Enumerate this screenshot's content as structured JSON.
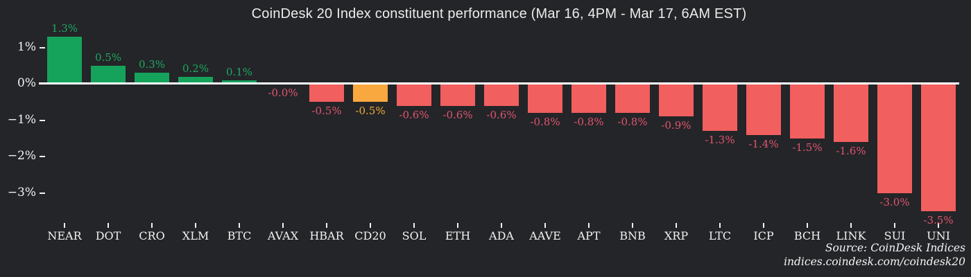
{
  "title": "CoinDesk 20 Index constituent performance (Mar 16, 4PM - Mar 17, 6AM EST)",
  "source": {
    "line1": "Source: CoinDesk Indices",
    "line2": "indices.coindesk.com/coindesk20"
  },
  "colors": {
    "background": "#242528",
    "positive_bar": "#15a35c",
    "negative_bar": "#f25f5f",
    "highlight_bar": "#f9a840",
    "positive_label": "#1ea863",
    "negative_label": "#e05570",
    "highlight_label": "#f0ad3a",
    "axis_line": "#ffffff",
    "axis_text": "#f2f2f2",
    "title_text": "#ececec"
  },
  "chart_data": {
    "type": "bar",
    "title": "CoinDesk 20 Index constituent performance (Mar 16, 4PM - Mar 17, 6AM EST)",
    "categories": [
      "NEAR",
      "DOT",
      "CRO",
      "XLM",
      "BTC",
      "AVAX",
      "HBAR",
      "CD20",
      "SOL",
      "ETH",
      "ADA",
      "AAVE",
      "APT",
      "BNB",
      "XRP",
      "LTC",
      "ICP",
      "BCH",
      "LINK",
      "SUI",
      "UNI"
    ],
    "values": [
      1.3,
      0.5,
      0.3,
      0.2,
      0.1,
      -0.0,
      -0.5,
      -0.5,
      -0.6,
      -0.6,
      -0.6,
      -0.8,
      -0.8,
      -0.8,
      -0.9,
      -1.3,
      -1.4,
      -1.5,
      -1.6,
      -3.0,
      -3.5
    ],
    "bar_labels": [
      "1.3%",
      "0.5%",
      "0.3%",
      "0.2%",
      "0.1%",
      "-0.0%",
      "-0.5%",
      "-0.5%",
      "-0.6%",
      "-0.6%",
      "-0.6%",
      "-0.8%",
      "-0.8%",
      "-0.8%",
      "-0.9%",
      "-1.3%",
      "-1.4%",
      "-1.5%",
      "-1.6%",
      "-3.0%",
      "-3.5%"
    ],
    "highlight_category": "CD20",
    "highlight_index": 7,
    "y_tick_labels": [
      "1%",
      "0%",
      "−1%",
      "−2%",
      "−3%"
    ],
    "y_tick_values": [
      1,
      0,
      -1,
      -2,
      -3
    ],
    "ylim": [
      -3.9,
      1.6
    ],
    "xlabel": "",
    "ylabel": "",
    "grid": false,
    "legend_position": "none"
  }
}
